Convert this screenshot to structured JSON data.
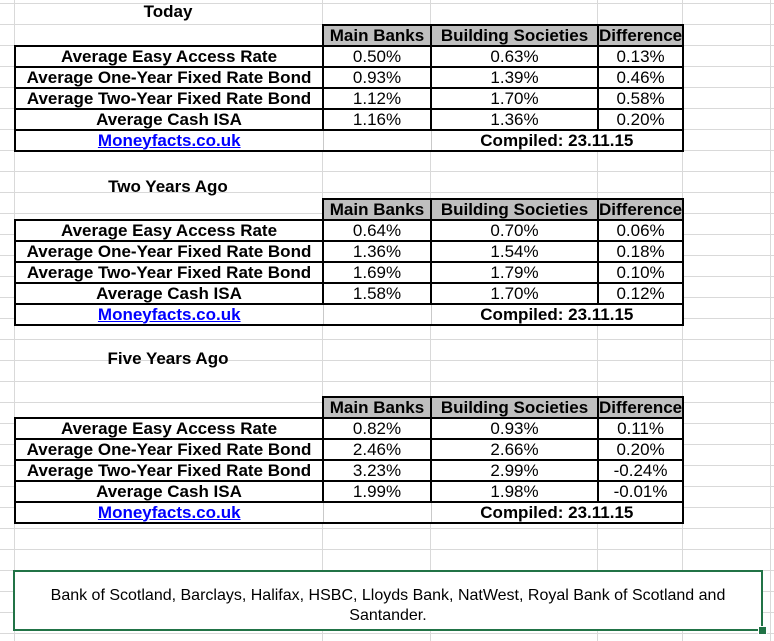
{
  "sheet": {
    "column_headers": [
      "Main Banks",
      "Building Societies",
      "Difference"
    ],
    "row_labels": [
      "Average Easy Access Rate",
      "Average One-Year Fixed Rate Bond",
      "Average Two-Year Fixed Rate Bond",
      "Average Cash ISA"
    ],
    "tables": [
      {
        "title": "Today",
        "values": [
          [
            "0.50%",
            "0.63%",
            "0.13%"
          ],
          [
            "0.93%",
            "1.39%",
            "0.46%"
          ],
          [
            "1.12%",
            "1.70%",
            "0.58%"
          ],
          [
            "1.16%",
            "1.36%",
            "0.20%"
          ]
        ],
        "source_link": "Moneyfacts.co.uk",
        "compiled": "Compiled: 23.11.15"
      },
      {
        "title": "Two Years Ago",
        "values": [
          [
            "0.64%",
            "0.70%",
            "0.06%"
          ],
          [
            "1.36%",
            "1.54%",
            "0.18%"
          ],
          [
            "1.69%",
            "1.79%",
            "0.10%"
          ],
          [
            "1.58%",
            "1.70%",
            "0.12%"
          ]
        ],
        "source_link": "Moneyfacts.co.uk",
        "compiled": "Compiled: 23.11.15"
      },
      {
        "title": "Five Years Ago",
        "values": [
          [
            "0.82%",
            "0.93%",
            "0.11%"
          ],
          [
            "2.46%",
            "2.66%",
            "0.20%"
          ],
          [
            "3.23%",
            "2.99%",
            "-0.24%"
          ],
          [
            "1.99%",
            "1.98%",
            "-0.01%"
          ]
        ],
        "source_link": "Moneyfacts.co.uk",
        "compiled": "Compiled: 23.11.15"
      }
    ],
    "footnote": "Bank of Scotland, Barclays, Halifax, HSBC, Lloyds Bank, NatWest, Royal Bank of Scotland and Santander.",
    "colors": {
      "header_bg": "#BFBFBF",
      "link_blue": "#0000FF",
      "selection_green": "#217346",
      "gridline": "#D9D9D9"
    }
  }
}
